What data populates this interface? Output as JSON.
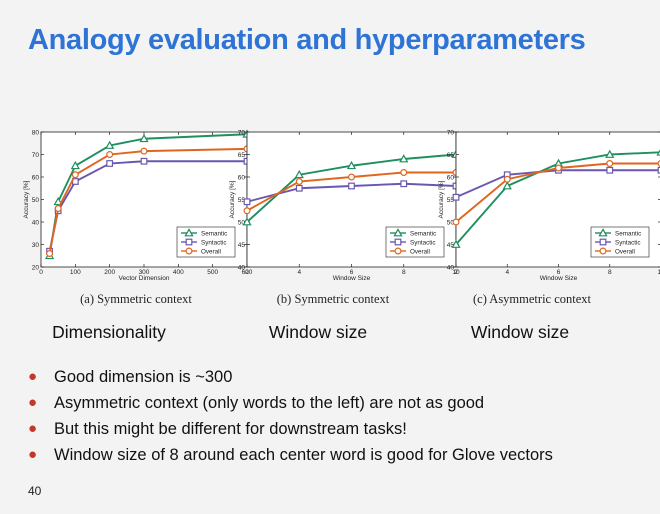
{
  "slide": {
    "title": "Analogy evaluation and hyperparameters",
    "page_number": "40",
    "bullets": [
      "Good dimension is ~300",
      "Asymmetric context (only words to the left) are not as good",
      "But this might be different for downstream tasks!",
      "Window size of 8 around each center word is good for Glove vectors"
    ],
    "bullet_color": "#c0392b",
    "title_color": "#2e74d6"
  },
  "panels": [
    {
      "caption": "(a) Symmetric context",
      "label": "Dimensionality"
    },
    {
      "caption": "(b) Symmetric context",
      "label": "Window size"
    },
    {
      "caption": "(c) Asymmetric context",
      "label": "Window size"
    }
  ],
  "series_style": [
    {
      "name": "Semantic",
      "color": "#1e8f5e",
      "marker": "triangle"
    },
    {
      "name": "Syntactic",
      "color": "#6a57b0",
      "marker": "square"
    },
    {
      "name": "Overall",
      "color": "#e0661e",
      "marker": "circle"
    }
  ],
  "chart_data": [
    {
      "type": "line",
      "xlabel": "Vector Dimension",
      "ylabel": "Accuracy [%]",
      "xlim": [
        0,
        600
      ],
      "ylim": [
        20,
        80
      ],
      "xticks": [
        0,
        100,
        200,
        300,
        400,
        500,
        600
      ],
      "yticks": [
        20,
        30,
        40,
        50,
        60,
        70,
        80
      ],
      "legend": "bottom-right",
      "x": [
        25,
        50,
        100,
        200,
        300,
        600
      ],
      "series": [
        {
          "name": "Semantic",
          "values": [
            25,
            49,
            65,
            74,
            77,
            79
          ]
        },
        {
          "name": "Syntactic",
          "values": [
            27,
            45,
            58,
            66,
            67,
            67
          ]
        },
        {
          "name": "Overall",
          "values": [
            26,
            46,
            61,
            70,
            71.5,
            72.5
          ]
        }
      ]
    },
    {
      "type": "line",
      "xlabel": "Window Size",
      "ylabel": "Accuracy [%]",
      "xlim": [
        2,
        10
      ],
      "ylim": [
        40,
        70
      ],
      "xticks": [
        2,
        4,
        6,
        8,
        10
      ],
      "yticks": [
        40,
        45,
        50,
        55,
        60,
        65,
        70
      ],
      "legend": "bottom-right",
      "x": [
        2,
        4,
        6,
        8,
        10
      ],
      "series": [
        {
          "name": "Semantic",
          "values": [
            50,
            60.5,
            62.5,
            64,
            65
          ]
        },
        {
          "name": "Syntactic",
          "values": [
            54.5,
            57.5,
            58,
            58.5,
            58
          ]
        },
        {
          "name": "Overall",
          "values": [
            52.5,
            59,
            60,
            61,
            61
          ]
        }
      ]
    },
    {
      "type": "line",
      "xlabel": "Window Size",
      "ylabel": "Accuracy [%]",
      "xlim": [
        2,
        10
      ],
      "ylim": [
        40,
        70
      ],
      "xticks": [
        2,
        4,
        6,
        8,
        10
      ],
      "yticks": [
        40,
        45,
        50,
        55,
        60,
        65,
        70
      ],
      "legend": "bottom-right",
      "x": [
        2,
        4,
        6,
        8,
        10
      ],
      "series": [
        {
          "name": "Semantic",
          "values": [
            45,
            58,
            63,
            65,
            65.5
          ]
        },
        {
          "name": "Syntactic",
          "values": [
            55.5,
            60.5,
            61.5,
            61.5,
            61.5
          ]
        },
        {
          "name": "Overall",
          "values": [
            50,
            59.5,
            62,
            63,
            63
          ]
        }
      ]
    }
  ]
}
